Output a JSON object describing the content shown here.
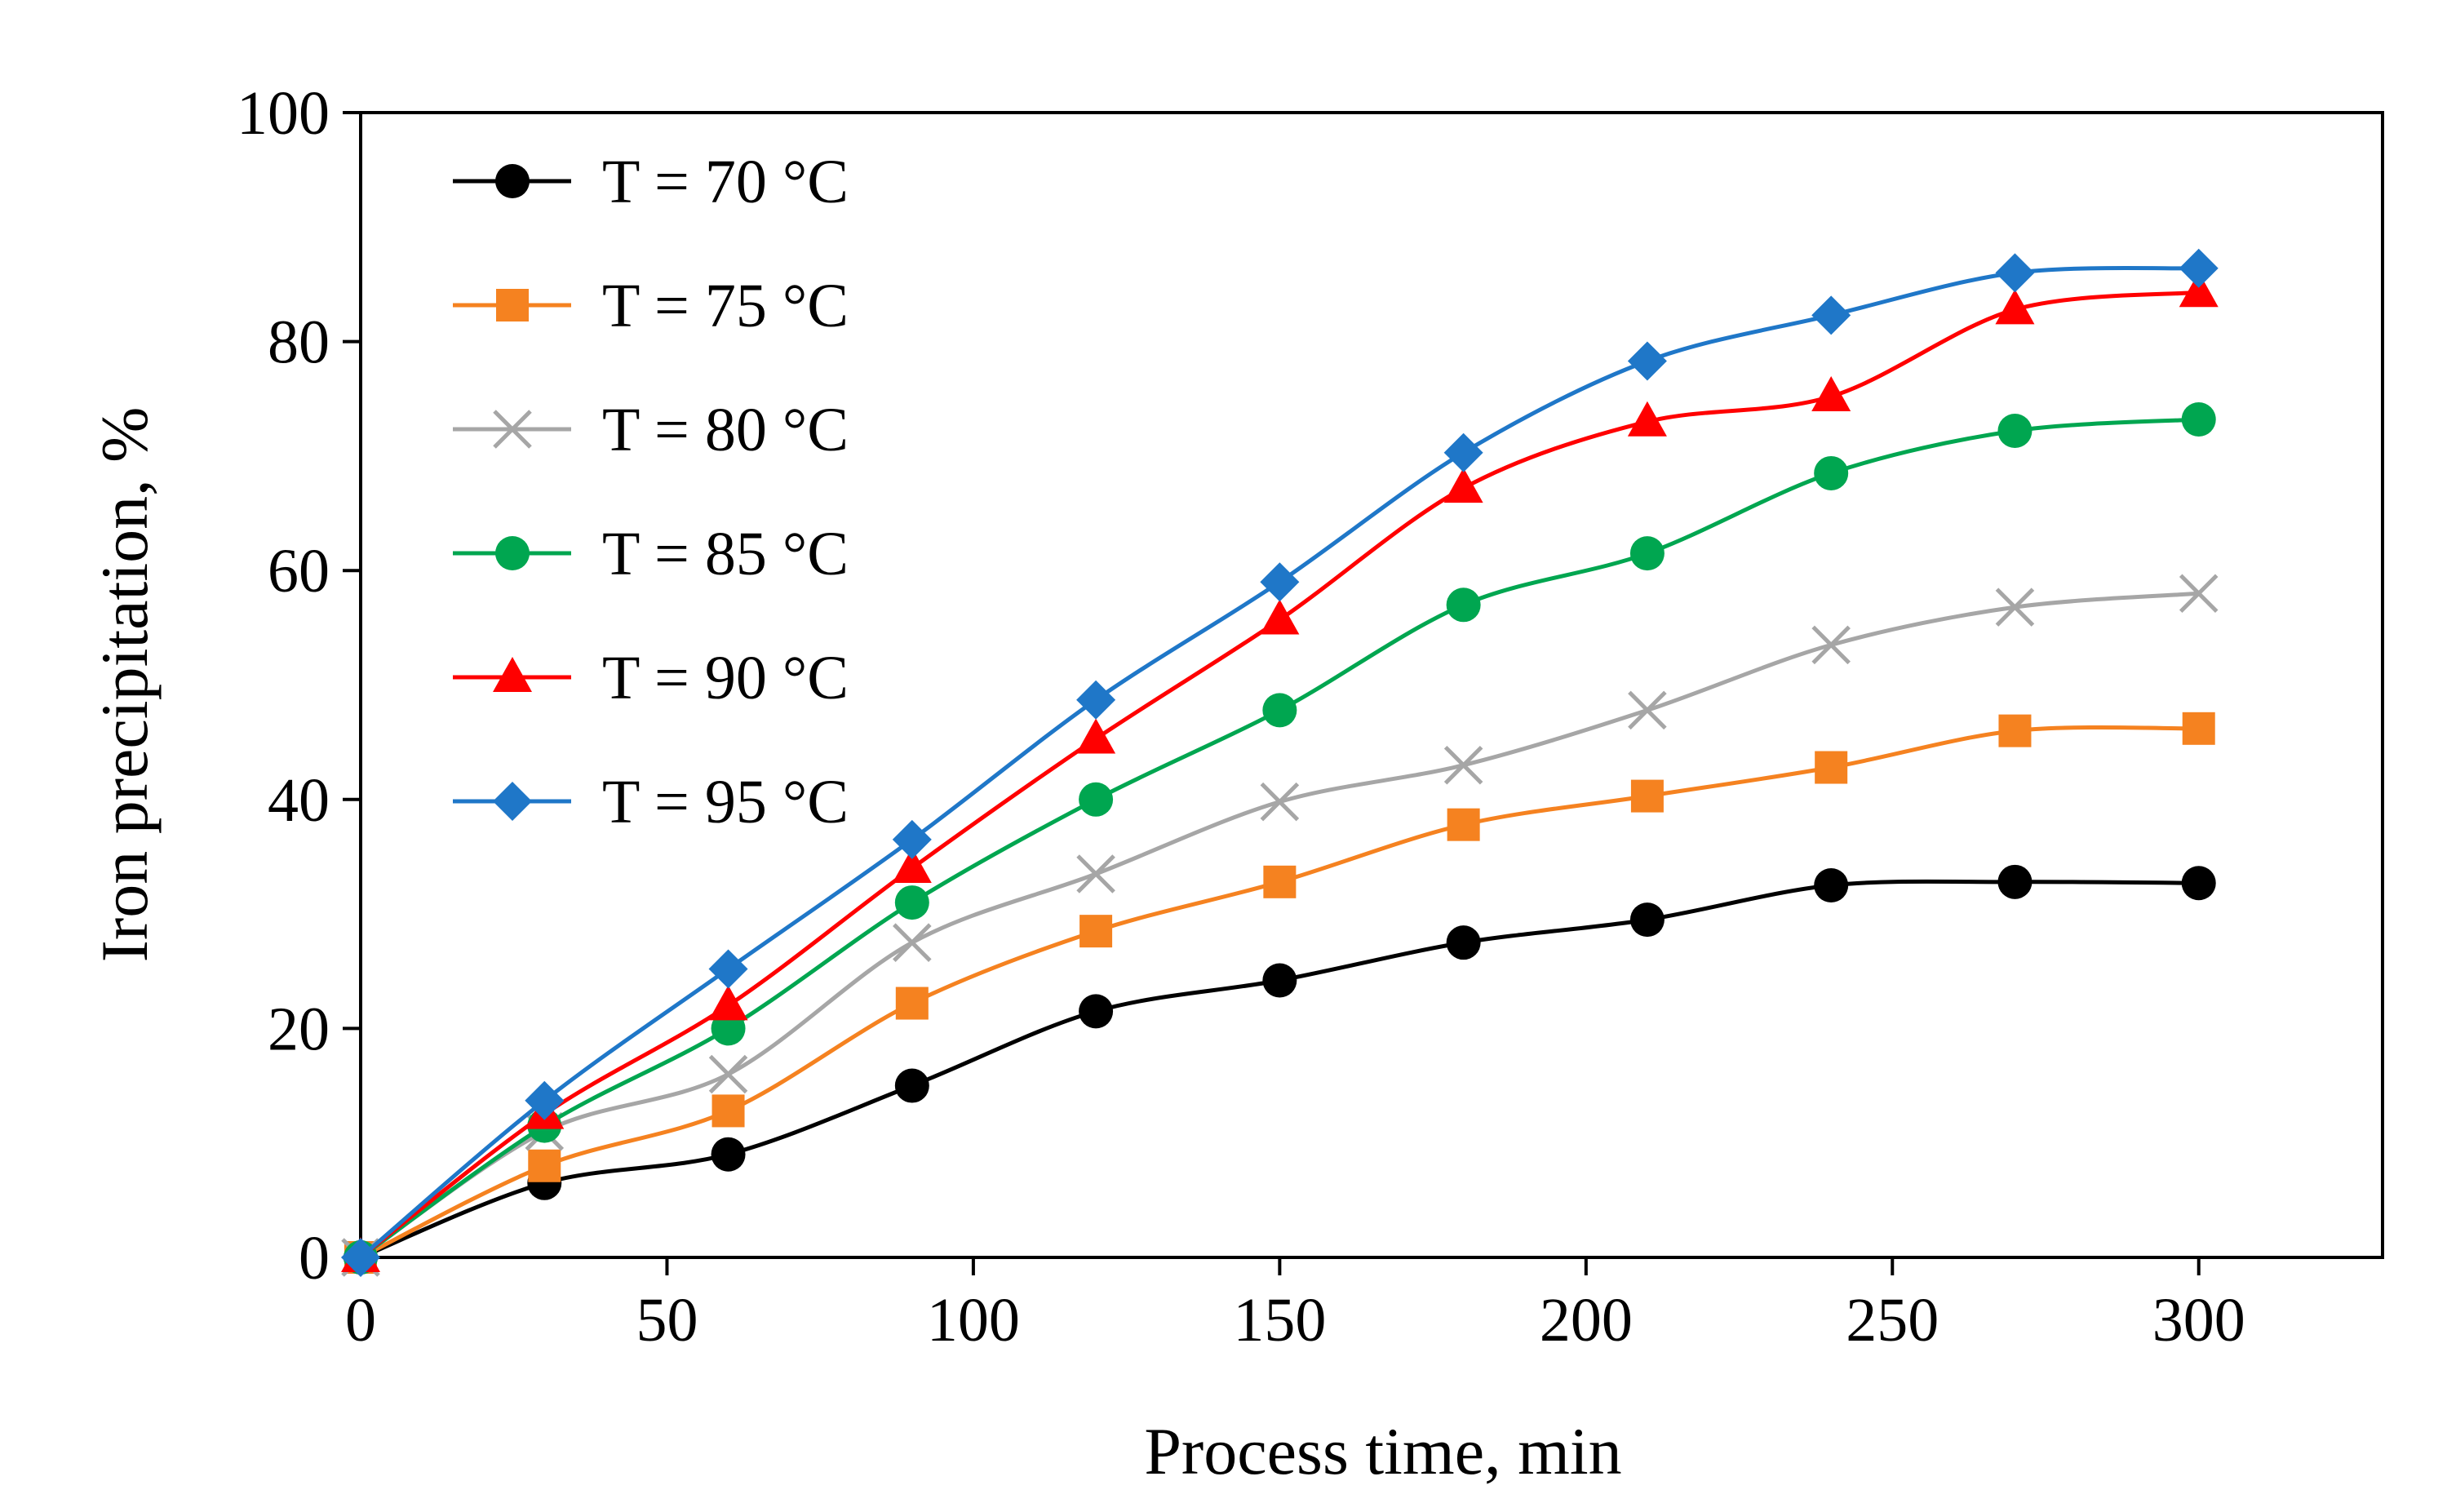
{
  "chart_data": {
    "type": "line",
    "xlabel": "Process time, min",
    "ylabel": "Iron precipitation, %",
    "xlim": [
      0,
      330
    ],
    "ylim": [
      0,
      100
    ],
    "xticks": [
      0,
      50,
      100,
      150,
      200,
      250,
      300
    ],
    "yticks": [
      0,
      20,
      40,
      60,
      80,
      100
    ],
    "xtick_labels": [
      "0",
      "50",
      "100",
      "150",
      "200",
      "250",
      "300"
    ],
    "ytick_labels": [
      "0",
      "20",
      "40",
      "60",
      "80",
      "100"
    ],
    "legend_position": "top-left",
    "grid": false,
    "x": [
      0,
      30,
      60,
      90,
      120,
      150,
      180,
      210,
      240,
      270,
      300
    ],
    "series": [
      {
        "name": "T = 70 °C",
        "color": "#000000",
        "marker": "circle",
        "values": [
          0,
          6.5,
          9.0,
          15.0,
          21.5,
          24.2,
          27.5,
          29.5,
          32.5,
          32.8,
          32.7
        ]
      },
      {
        "name": "T = 75 °C",
        "color": "#F58220",
        "marker": "square",
        "values": [
          0,
          8.0,
          12.8,
          22.2,
          28.5,
          32.8,
          37.8,
          40.3,
          42.8,
          46.0,
          46.2
        ]
      },
      {
        "name": "T = 80 °C",
        "color": "#A6A6A6",
        "marker": "x",
        "values": [
          0,
          11.0,
          16.0,
          27.5,
          33.5,
          39.8,
          43.0,
          47.8,
          53.5,
          56.8,
          58.0
        ]
      },
      {
        "name": "T = 85 °C",
        "color": "#00A650",
        "marker": "circle",
        "values": [
          0,
          11.5,
          20.0,
          31.0,
          40.0,
          47.8,
          57.0,
          61.5,
          68.5,
          72.2,
          73.2
        ]
      },
      {
        "name": "T = 90 °C",
        "color": "#FF0000",
        "marker": "triangle",
        "values": [
          0,
          12.5,
          22.0,
          34.0,
          45.3,
          55.7,
          67.2,
          73.0,
          75.2,
          82.8,
          84.3
        ]
      },
      {
        "name": "T = 95 °C",
        "color": "#1F77C8",
        "marker": "diamond",
        "values": [
          0,
          13.7,
          25.2,
          36.5,
          48.7,
          59.0,
          70.3,
          78.3,
          82.3,
          86.0,
          86.4
        ]
      }
    ]
  }
}
